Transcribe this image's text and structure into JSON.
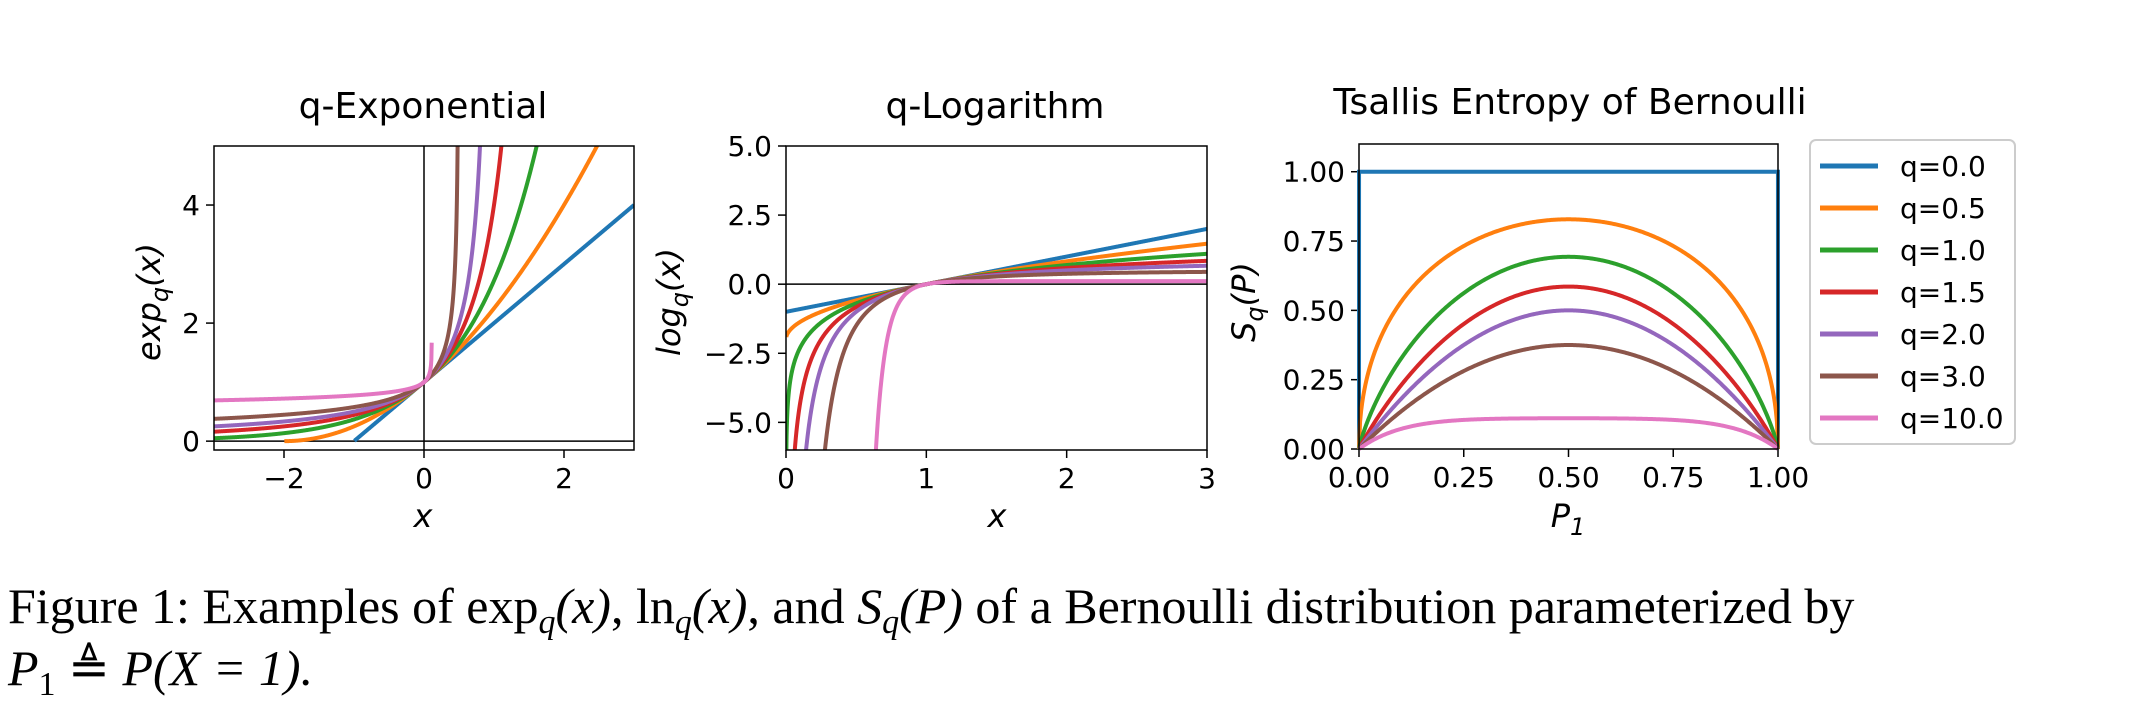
{
  "colors": {
    "q=0.0": "#1f77b4",
    "q=0.5": "#ff7f0e",
    "q=1.0": "#2ca02c",
    "q=1.5": "#d62728",
    "q=2.0": "#9467bd",
    "q=3.0": "#8c564b",
    "q=10.0": "#e377c2"
  },
  "chart_data": [
    {
      "type": "line",
      "title": "q-Exponential",
      "xlabel": "x",
      "ylabel": "exp_q(x)",
      "xlim": [
        -3,
        3
      ],
      "ylim": [
        -0.15,
        5
      ],
      "xticks": [
        "−2",
        "0",
        "2"
      ],
      "xtick_values": [
        -2,
        0,
        2
      ],
      "yticks": [
        "0",
        "2",
        "4"
      ],
      "ytick_values": [
        0,
        2,
        4
      ],
      "reference_lines": {
        "x": 0,
        "y": 0
      },
      "series": [
        {
          "q": 0.0,
          "color_key": "q=0.0"
        },
        {
          "q": 0.5,
          "color_key": "q=0.5"
        },
        {
          "q": 1.0,
          "color_key": "q=1.0"
        },
        {
          "q": 1.5,
          "color_key": "q=1.5"
        },
        {
          "q": 2.0,
          "color_key": "q=2.0"
        },
        {
          "q": 3.0,
          "color_key": "q=3.0"
        },
        {
          "q": 10.0,
          "color_key": "q=10.0"
        }
      ]
    },
    {
      "type": "line",
      "title": "q-Logarithm",
      "xlabel": "x",
      "ylabel": "log_q(x)",
      "xlim": [
        0,
        3
      ],
      "ylim": [
        -6,
        5
      ],
      "xticks": [
        "0",
        "1",
        "2",
        "3"
      ],
      "xtick_values": [
        0,
        1,
        2,
        3
      ],
      "yticks": [
        "5.0",
        "2.5",
        "0.0",
        "−2.5",
        "−5.0"
      ],
      "ytick_values": [
        5,
        2.5,
        0,
        -2.5,
        -5
      ],
      "reference_lines": {
        "y": 0
      },
      "series": [
        {
          "q": 0.0,
          "color_key": "q=0.0"
        },
        {
          "q": 0.5,
          "color_key": "q=0.5"
        },
        {
          "q": 1.0,
          "color_key": "q=1.0"
        },
        {
          "q": 1.5,
          "color_key": "q=1.5"
        },
        {
          "q": 2.0,
          "color_key": "q=2.0"
        },
        {
          "q": 3.0,
          "color_key": "q=3.0"
        },
        {
          "q": 10.0,
          "color_key": "q=10.0"
        }
      ]
    },
    {
      "type": "line",
      "title": "Tsallis Entropy of Bernoulli",
      "xlabel": "P_1",
      "ylabel": "S_q(P)",
      "xlim": [
        0,
        1
      ],
      "ylim": [
        0,
        1.1
      ],
      "xticks": [
        "0.00",
        "0.25",
        "0.50",
        "0.75",
        "1.00"
      ],
      "xtick_values": [
        0,
        0.25,
        0.5,
        0.75,
        1
      ],
      "yticks": [
        "1.00",
        "0.75",
        "0.50",
        "0.25",
        "0.00"
      ],
      "ytick_values": [
        1,
        0.75,
        0.5,
        0.25,
        0
      ],
      "legend_position": "outside-right",
      "series": [
        {
          "name": "q=0.0",
          "q": 0.0,
          "color_key": "q=0.0"
        },
        {
          "name": "q=0.5",
          "q": 0.5,
          "color_key": "q=0.5"
        },
        {
          "name": "q=1.0",
          "q": 1.0,
          "color_key": "q=1.0"
        },
        {
          "name": "q=1.5",
          "q": 1.5,
          "color_key": "q=1.5"
        },
        {
          "name": "q=2.0",
          "q": 2.0,
          "color_key": "q=2.0"
        },
        {
          "name": "q=3.0",
          "q": 3.0,
          "color_key": "q=3.0"
        },
        {
          "name": "q=10.0",
          "q": 10.0,
          "color_key": "q=10.0"
        }
      ]
    }
  ],
  "caption": {
    "lead": "Figure 1: Examples of",
    "exp_fn": "exp",
    "ln_fn": "ln",
    "sub_q": "q",
    "arg_x": "(x)",
    "sep": ",",
    "and": ", and",
    "S": "S",
    "arg_P": "(P)",
    "tail": "of a Bernoulli distribution parameterized by",
    "P": "P",
    "sub_1": "1",
    "defeq": "≜",
    "rhs": "P(X = 1)."
  }
}
